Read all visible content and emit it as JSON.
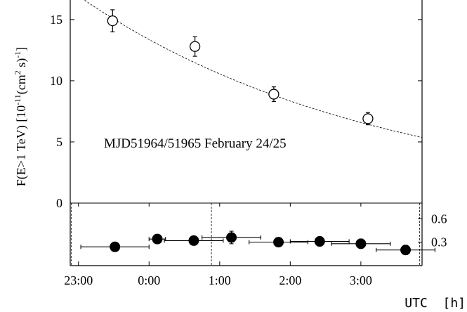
{
  "chart_data": {
    "type": "scatter",
    "annotation": "MJD51964/51965 February 24/25",
    "xlabel": "UTC  [h]",
    "ylabel_main": "F(E>1 TeV) [10",
    "ylabel_exp": "-11",
    "ylabel_mid": "(cm",
    "ylabel_exp2": "2",
    "ylabel_tail": " s)",
    "ylabel_exp3": "-1",
    "ylabel_end": "]",
    "xlim": [
      "22:53",
      "3:52"
    ],
    "x_ticks": [
      "23:00",
      "0:00",
      "1:00",
      "2:00",
      "3:00"
    ],
    "upper_panel": {
      "ylim": [
        0,
        16.6
      ],
      "y_ticks": [
        "0",
        "5",
        "10",
        "15"
      ],
      "series": [
        {
          "marker": "open-circle",
          "points": [
            {
              "x": "23:29",
              "y": 14.9,
              "yerr": 0.9
            },
            {
              "x": "0:39",
              "y": 12.8,
              "yerr": 0.8
            },
            {
              "x": "1:46",
              "y": 8.9,
              "yerr": 0.6
            },
            {
              "x": "3:06",
              "y": 6.9,
              "yerr": 0.5
            }
          ]
        }
      ],
      "fit": {
        "style": "dashed",
        "model": "exponential decay",
        "x0": "22:53",
        "y0": 17.4,
        "tau_hours": 4.24
      }
    },
    "lower_panel": {
      "ylim": [
        0,
        0.8
      ],
      "y_ticks": [
        "0.3",
        "0.6"
      ],
      "series": [
        {
          "marker": "filled-circle",
          "points": [
            {
              "x": "23:31",
              "y": 0.24,
              "xerr_min": 29,
              "yerr": 0.05
            },
            {
              "x": "0:07",
              "y": 0.34,
              "xerr_min": 7,
              "yerr": 0.04
            },
            {
              "x": "0:38",
              "y": 0.32,
              "xerr_min": 25,
              "yerr": 0.04
            },
            {
              "x": "1:10",
              "y": 0.36,
              "xerr_min": 25,
              "yerr": 0.08
            },
            {
              "x": "1:50",
              "y": 0.3,
              "xerr_min": 25,
              "yerr": 0.04
            },
            {
              "x": "2:25",
              "y": 0.31,
              "xerr_min": 25,
              "yerr": 0.06
            },
            {
              "x": "3:00",
              "y": 0.28,
              "xerr_min": 25,
              "yerr": 0.06
            },
            {
              "x": "3:38",
              "y": 0.2,
              "xerr_min": 25,
              "yerr": 0.06
            }
          ]
        }
      ],
      "vlines": [
        "22:54",
        "0:53",
        "3:50"
      ]
    }
  }
}
